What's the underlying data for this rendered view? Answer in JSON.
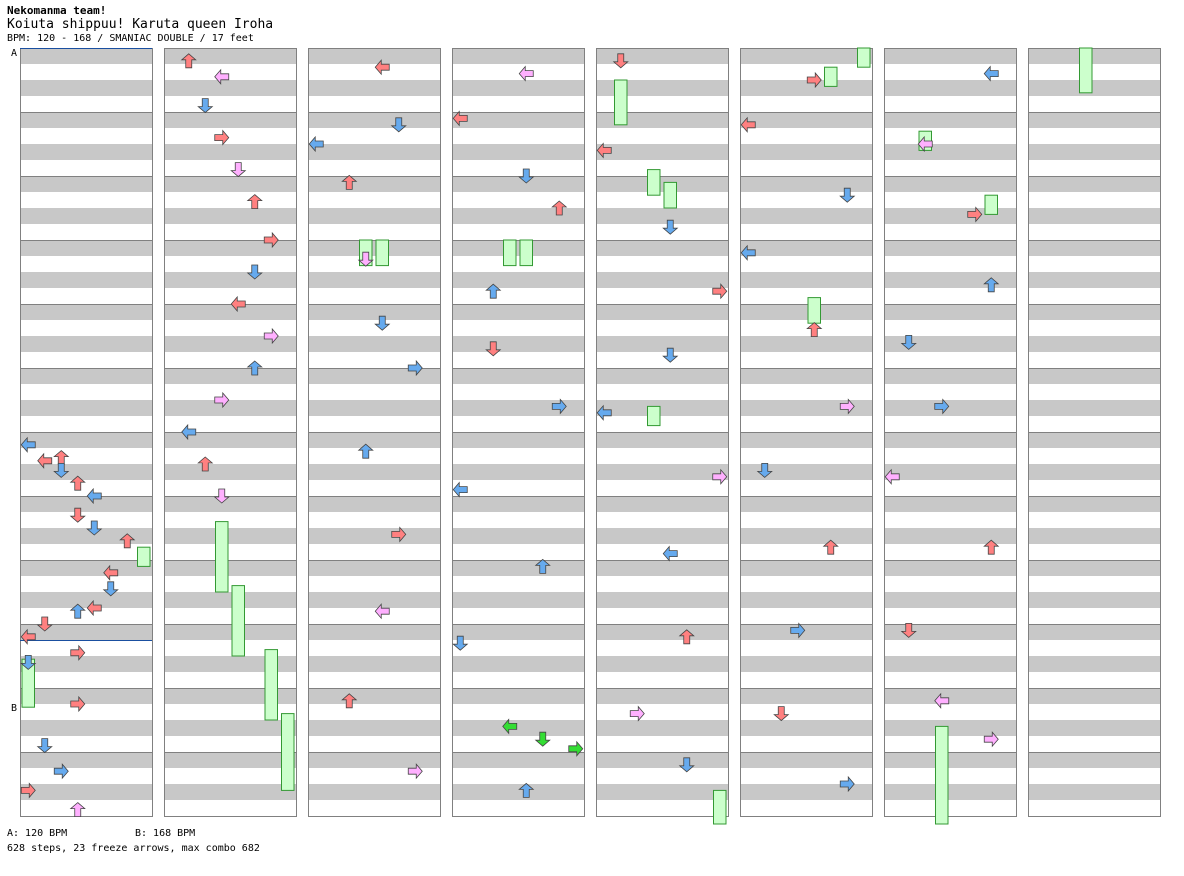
{
  "header": {
    "team": "Nekomanma team!",
    "title": "Koiuta shippuu! Karuta queen Iroha",
    "info": "BPM: 120 - 168 / SMANIAC DOUBLE / 17 feet"
  },
  "footer": {
    "bpm_a": "A: 120 BPM",
    "bpm_b": "B: 168 BPM",
    "stats": "628 steps, 23 freeze arrows, max combo 682"
  },
  "markers": {
    "a": "A",
    "b": "B"
  },
  "colors": {
    "stripe": "#c8c8c8",
    "panel_border": "#808080",
    "measure_line": "#808080",
    "bpm_line": "#1a4fa0",
    "red": "#ff8080",
    "blue": "#66aaee",
    "pink": "#ffb0ff",
    "green": "#33dd33",
    "freeze": "#ccffcc",
    "freeze_border": "#339933",
    "arrow_outline": "#444444"
  },
  "chart_data": {
    "type": "step-chart",
    "mode": "SMANIAC DOUBLE",
    "difficulty_feet": 17,
    "bpm_range": [
      120,
      168
    ],
    "columns": 8,
    "measures_per_column": 12,
    "bpm_changes": [
      {
        "label": "A",
        "bpm": 120,
        "column": 1,
        "measure": 1.0
      },
      {
        "label": "B",
        "bpm": 168,
        "column": 1,
        "measure": 10.25
      }
    ],
    "steps": 628,
    "freeze_arrows": 23,
    "max_combo": 682,
    "arrow_samples": [
      {
        "col": 1,
        "pos": 6.2,
        "lane": 0,
        "dir": "L",
        "c": "blue"
      },
      {
        "col": 1,
        "pos": 6.45,
        "lane": 1,
        "dir": "L",
        "c": "red"
      },
      {
        "col": 1,
        "pos": 6.4,
        "lane": 2,
        "dir": "U",
        "c": "red"
      },
      {
        "col": 1,
        "pos": 6.6,
        "lane": 2,
        "dir": "D",
        "c": "blue"
      },
      {
        "col": 1,
        "pos": 6.8,
        "lane": 3,
        "dir": "U",
        "c": "red"
      },
      {
        "col": 1,
        "pos": 7.0,
        "lane": 4,
        "dir": "L",
        "c": "blue"
      },
      {
        "col": 1,
        "pos": 7.3,
        "lane": 3,
        "dir": "D",
        "c": "red"
      },
      {
        "col": 1,
        "pos": 7.5,
        "lane": 4,
        "dir": "D",
        "c": "blue"
      },
      {
        "col": 1,
        "pos": 7.7,
        "lane": 6,
        "dir": "U",
        "c": "red"
      },
      {
        "col": 1,
        "pos": 8.2,
        "lane": 5,
        "dir": "L",
        "c": "red"
      },
      {
        "col": 1,
        "pos": 8.45,
        "lane": 5,
        "dir": "D",
        "c": "blue"
      },
      {
        "col": 1,
        "pos": 8.75,
        "lane": 4,
        "dir": "L",
        "c": "red"
      },
      {
        "col": 1,
        "pos": 8.8,
        "lane": 3,
        "dir": "U",
        "c": "blue"
      },
      {
        "col": 1,
        "pos": 9.0,
        "lane": 1,
        "dir": "D",
        "c": "red"
      },
      {
        "col": 1,
        "pos": 9.2,
        "lane": 0,
        "dir": "L",
        "c": "red"
      },
      {
        "col": 1,
        "pos": 9.45,
        "lane": 3,
        "dir": "R",
        "c": "red"
      },
      {
        "col": 1,
        "pos": 9.6,
        "lane": 0,
        "dir": "D",
        "c": "blue"
      },
      {
        "col": 1,
        "pos": 10.25,
        "lane": 3,
        "dir": "R",
        "c": "red"
      },
      {
        "col": 1,
        "pos": 10.9,
        "lane": 1,
        "dir": "D",
        "c": "blue"
      },
      {
        "col": 1,
        "pos": 11.3,
        "lane": 2,
        "dir": "R",
        "c": "blue"
      },
      {
        "col": 1,
        "pos": 11.6,
        "lane": 0,
        "dir": "R",
        "c": "red"
      },
      {
        "col": 1,
        "pos": 11.9,
        "lane": 3,
        "dir": "U",
        "c": "pink"
      },
      {
        "col": 2,
        "pos": 0.2,
        "lane": 1,
        "dir": "U",
        "c": "red"
      },
      {
        "col": 2,
        "pos": 0.45,
        "lane": 3,
        "dir": "L",
        "c": "pink"
      },
      {
        "col": 2,
        "pos": 0.9,
        "lane": 2,
        "dir": "D",
        "c": "blue"
      },
      {
        "col": 2,
        "pos": 1.4,
        "lane": 3,
        "dir": "R",
        "c": "red"
      },
      {
        "col": 2,
        "pos": 1.9,
        "lane": 4,
        "dir": "D",
        "c": "pink"
      },
      {
        "col": 2,
        "pos": 2.4,
        "lane": 5,
        "dir": "U",
        "c": "red"
      },
      {
        "col": 2,
        "pos": 3.0,
        "lane": 6,
        "dir": "R",
        "c": "red"
      },
      {
        "col": 2,
        "pos": 3.5,
        "lane": 5,
        "dir": "D",
        "c": "blue"
      },
      {
        "col": 2,
        "pos": 4.0,
        "lane": 4,
        "dir": "L",
        "c": "red"
      },
      {
        "col": 2,
        "pos": 4.5,
        "lane": 6,
        "dir": "R",
        "c": "pink"
      },
      {
        "col": 2,
        "pos": 5.0,
        "lane": 5,
        "dir": "U",
        "c": "blue"
      },
      {
        "col": 2,
        "pos": 5.5,
        "lane": 3,
        "dir": "R",
        "c": "pink"
      },
      {
        "col": 2,
        "pos": 6.0,
        "lane": 1,
        "dir": "L",
        "c": "blue"
      },
      {
        "col": 2,
        "pos": 6.5,
        "lane": 2,
        "dir": "U",
        "c": "red"
      },
      {
        "col": 2,
        "pos": 7.0,
        "lane": 3,
        "dir": "D",
        "c": "pink"
      },
      {
        "col": 3,
        "pos": 0.3,
        "lane": 4,
        "dir": "L",
        "c": "red"
      },
      {
        "col": 3,
        "pos": 1.2,
        "lane": 5,
        "dir": "D",
        "c": "blue"
      },
      {
        "col": 3,
        "pos": 1.5,
        "lane": 0,
        "dir": "L",
        "c": "blue"
      },
      {
        "col": 3,
        "pos": 2.1,
        "lane": 2,
        "dir": "U",
        "c": "red"
      },
      {
        "col": 3,
        "pos": 3.3,
        "lane": 3,
        "dir": "D",
        "c": "pink"
      },
      {
        "col": 3,
        "pos": 4.3,
        "lane": 4,
        "dir": "D",
        "c": "blue"
      },
      {
        "col": 3,
        "pos": 5.0,
        "lane": 6,
        "dir": "R",
        "c": "blue"
      },
      {
        "col": 3,
        "pos": 6.3,
        "lane": 3,
        "dir": "U",
        "c": "blue"
      },
      {
        "col": 3,
        "pos": 7.6,
        "lane": 5,
        "dir": "R",
        "c": "red"
      },
      {
        "col": 3,
        "pos": 8.8,
        "lane": 4,
        "dir": "L",
        "c": "pink"
      },
      {
        "col": 3,
        "pos": 10.2,
        "lane": 2,
        "dir": "U",
        "c": "red"
      },
      {
        "col": 3,
        "pos": 11.3,
        "lane": 6,
        "dir": "R",
        "c": "pink"
      },
      {
        "col": 4,
        "pos": 0.4,
        "lane": 4,
        "dir": "L",
        "c": "pink"
      },
      {
        "col": 4,
        "pos": 1.1,
        "lane": 0,
        "dir": "L",
        "c": "red"
      },
      {
        "col": 4,
        "pos": 2.0,
        "lane": 4,
        "dir": "D",
        "c": "blue"
      },
      {
        "col": 4,
        "pos": 2.5,
        "lane": 6,
        "dir": "U",
        "c": "red"
      },
      {
        "col": 4,
        "pos": 3.8,
        "lane": 2,
        "dir": "U",
        "c": "blue"
      },
      {
        "col": 4,
        "pos": 4.7,
        "lane": 2,
        "dir": "D",
        "c": "red"
      },
      {
        "col": 4,
        "pos": 5.6,
        "lane": 6,
        "dir": "R",
        "c": "blue"
      },
      {
        "col": 4,
        "pos": 6.9,
        "lane": 0,
        "dir": "L",
        "c": "blue"
      },
      {
        "col": 4,
        "pos": 8.1,
        "lane": 5,
        "dir": "U",
        "c": "blue"
      },
      {
        "col": 4,
        "pos": 9.3,
        "lane": 0,
        "dir": "D",
        "c": "blue"
      },
      {
        "col": 4,
        "pos": 10.6,
        "lane": 3,
        "dir": "L",
        "c": "green"
      },
      {
        "col": 4,
        "pos": 10.8,
        "lane": 5,
        "dir": "D",
        "c": "green"
      },
      {
        "col": 4,
        "pos": 10.95,
        "lane": 7,
        "dir": "R",
        "c": "green"
      },
      {
        "col": 4,
        "pos": 11.6,
        "lane": 4,
        "dir": "U",
        "c": "blue"
      },
      {
        "col": 5,
        "pos": 0.2,
        "lane": 1,
        "dir": "D",
        "c": "red"
      },
      {
        "col": 5,
        "pos": 1.6,
        "lane": 0,
        "dir": "L",
        "c": "red"
      },
      {
        "col": 5,
        "pos": 2.8,
        "lane": 4,
        "dir": "D",
        "c": "blue"
      },
      {
        "col": 5,
        "pos": 3.8,
        "lane": 7,
        "dir": "R",
        "c": "red"
      },
      {
        "col": 5,
        "pos": 4.8,
        "lane": 4,
        "dir": "D",
        "c": "blue"
      },
      {
        "col": 5,
        "pos": 5.7,
        "lane": 0,
        "dir": "L",
        "c": "blue"
      },
      {
        "col": 5,
        "pos": 6.7,
        "lane": 7,
        "dir": "R",
        "c": "pink"
      },
      {
        "col": 5,
        "pos": 7.9,
        "lane": 4,
        "dir": "L",
        "c": "blue"
      },
      {
        "col": 5,
        "pos": 9.2,
        "lane": 5,
        "dir": "U",
        "c": "red"
      },
      {
        "col": 5,
        "pos": 10.4,
        "lane": 2,
        "dir": "R",
        "c": "pink"
      },
      {
        "col": 5,
        "pos": 11.2,
        "lane": 5,
        "dir": "D",
        "c": "blue"
      },
      {
        "col": 6,
        "pos": 0.5,
        "lane": 4,
        "dir": "R",
        "c": "red"
      },
      {
        "col": 6,
        "pos": 1.2,
        "lane": 0,
        "dir": "L",
        "c": "red"
      },
      {
        "col": 6,
        "pos": 2.3,
        "lane": 6,
        "dir": "D",
        "c": "blue"
      },
      {
        "col": 6,
        "pos": 3.2,
        "lane": 0,
        "dir": "L",
        "c": "blue"
      },
      {
        "col": 6,
        "pos": 4.4,
        "lane": 4,
        "dir": "U",
        "c": "red"
      },
      {
        "col": 6,
        "pos": 5.6,
        "lane": 6,
        "dir": "R",
        "c": "pink"
      },
      {
        "col": 6,
        "pos": 6.6,
        "lane": 1,
        "dir": "D",
        "c": "blue"
      },
      {
        "col": 6,
        "pos": 7.8,
        "lane": 5,
        "dir": "U",
        "c": "red"
      },
      {
        "col": 6,
        "pos": 9.1,
        "lane": 3,
        "dir": "R",
        "c": "blue"
      },
      {
        "col": 6,
        "pos": 10.4,
        "lane": 2,
        "dir": "D",
        "c": "red"
      },
      {
        "col": 6,
        "pos": 11.5,
        "lane": 6,
        "dir": "R",
        "c": "blue"
      },
      {
        "col": 7,
        "pos": 0.4,
        "lane": 6,
        "dir": "L",
        "c": "blue"
      },
      {
        "col": 7,
        "pos": 1.5,
        "lane": 2,
        "dir": "L",
        "c": "pink"
      },
      {
        "col": 7,
        "pos": 2.6,
        "lane": 5,
        "dir": "R",
        "c": "red"
      },
      {
        "col": 7,
        "pos": 3.7,
        "lane": 6,
        "dir": "U",
        "c": "blue"
      },
      {
        "col": 7,
        "pos": 4.6,
        "lane": 1,
        "dir": "D",
        "c": "blue"
      },
      {
        "col": 7,
        "pos": 5.6,
        "lane": 3,
        "dir": "R",
        "c": "blue"
      },
      {
        "col": 7,
        "pos": 6.7,
        "lane": 0,
        "dir": "L",
        "c": "pink"
      },
      {
        "col": 7,
        "pos": 7.8,
        "lane": 6,
        "dir": "U",
        "c": "red"
      },
      {
        "col": 7,
        "pos": 9.1,
        "lane": 1,
        "dir": "D",
        "c": "red"
      },
      {
        "col": 7,
        "pos": 10.2,
        "lane": 3,
        "dir": "L",
        "c": "pink"
      },
      {
        "col": 7,
        "pos": 10.8,
        "lane": 6,
        "dir": "R",
        "c": "pink"
      }
    ],
    "freeze_samples": [
      {
        "col": 1,
        "start": 9.55,
        "end": 10.3,
        "lane": 0
      },
      {
        "col": 1,
        "start": 7.8,
        "end": 8.1,
        "lane": 7
      },
      {
        "col": 2,
        "start": 7.4,
        "end": 8.5,
        "lane": 3
      },
      {
        "col": 2,
        "start": 8.4,
        "end": 9.5,
        "lane": 4
      },
      {
        "col": 2,
        "start": 9.4,
        "end": 10.5,
        "lane": 6
      },
      {
        "col": 2,
        "start": 10.4,
        "end": 11.6,
        "lane": 7
      },
      {
        "col": 3,
        "start": 3.0,
        "end": 3.4,
        "lane": 3
      },
      {
        "col": 3,
        "start": 3.0,
        "end": 3.4,
        "lane": 4
      },
      {
        "col": 4,
        "start": 3.0,
        "end": 3.4,
        "lane": 3
      },
      {
        "col": 4,
        "start": 3.0,
        "end": 3.4,
        "lane": 4
      },
      {
        "col": 5,
        "start": 0.5,
        "end": 1.2,
        "lane": 1
      },
      {
        "col": 5,
        "start": 1.9,
        "end": 2.3,
        "lane": 3
      },
      {
        "col": 5,
        "start": 2.1,
        "end": 2.5,
        "lane": 4
      },
      {
        "col": 5,
        "start": 5.6,
        "end": 5.9,
        "lane": 3
      },
      {
        "col": 5,
        "start": 11.6,
        "end": 12.2,
        "lane": 7
      },
      {
        "col": 6,
        "start": 0.0,
        "end": 0.3,
        "lane": 7
      },
      {
        "col": 6,
        "start": 0.3,
        "end": 0.6,
        "lane": 5
      },
      {
        "col": 6,
        "start": 3.9,
        "end": 4.3,
        "lane": 4
      },
      {
        "col": 7,
        "start": 1.3,
        "end": 1.6,
        "lane": 2
      },
      {
        "col": 7,
        "start": 2.3,
        "end": 2.6,
        "lane": 6
      },
      {
        "col": 7,
        "start": 10.6,
        "end": 12.2,
        "lane": 3
      },
      {
        "col": 8,
        "start": 0.0,
        "end": 0.7,
        "lane": 3
      }
    ]
  }
}
